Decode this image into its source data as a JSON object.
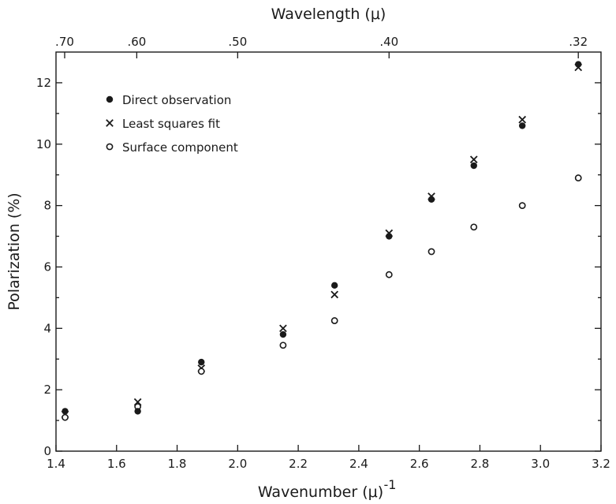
{
  "chart_data": {
    "type": "scatter",
    "title": "",
    "xlabel": "Wavenumber (μ)",
    "xlabel_exponent": "-1",
    "ylabel": "Polarization (%)",
    "x2label": "Wavelength (μ)",
    "xlim": [
      1.4,
      3.2
    ],
    "ylim": [
      0,
      13
    ],
    "x_ticks": [
      1.4,
      1.6,
      1.8,
      2.0,
      2.2,
      2.4,
      2.6,
      2.8,
      3.0,
      3.2
    ],
    "x_tick_labels": [
      "1.4",
      "1.6",
      "1.8",
      "2.0",
      "2.2",
      "2.4",
      "2.6",
      "2.8",
      "3.0",
      "3.2"
    ],
    "y_ticks": [
      0,
      2,
      4,
      6,
      8,
      10,
      12
    ],
    "y_tick_labels": [
      "0",
      "2",
      "4",
      "6",
      "8",
      "10",
      "12"
    ],
    "x2_ticks": [
      {
        "label": ".70",
        "value": 1.4286
      },
      {
        "label": ".60",
        "value": 1.6667
      },
      {
        "label": ".50",
        "value": 2.0
      },
      {
        "label": ".40",
        "value": 2.5
      },
      {
        "label": ".32",
        "value": 3.125
      }
    ],
    "grid": false,
    "legend_position": "top-left",
    "series": [
      {
        "name": "Direct observation",
        "marker": "filled-circle",
        "color": "#1a1a1a",
        "x": [
          1.43,
          1.67,
          1.88,
          2.15,
          2.32,
          2.5,
          2.64,
          2.78,
          2.94,
          3.125
        ],
        "y": [
          1.3,
          1.3,
          2.9,
          3.8,
          5.4,
          7.0,
          8.2,
          9.3,
          10.6,
          12.6
        ]
      },
      {
        "name": "Least squares fit",
        "marker": "x",
        "color": "#1a1a1a",
        "x": [
          1.43,
          1.67,
          1.88,
          2.15,
          2.32,
          2.5,
          2.64,
          2.78,
          2.94,
          3.125
        ],
        "y": [
          1.2,
          1.6,
          2.7,
          4.0,
          5.1,
          7.1,
          8.3,
          9.5,
          10.8,
          12.5
        ]
      },
      {
        "name": "Surface component",
        "marker": "open-circle",
        "color": "#1a1a1a",
        "x": [
          1.43,
          1.67,
          1.88,
          2.15,
          2.32,
          2.5,
          2.64,
          2.78,
          2.94,
          3.125
        ],
        "y": [
          1.1,
          1.45,
          2.6,
          3.45,
          4.25,
          5.75,
          6.5,
          7.3,
          8.0,
          8.9
        ]
      }
    ]
  }
}
